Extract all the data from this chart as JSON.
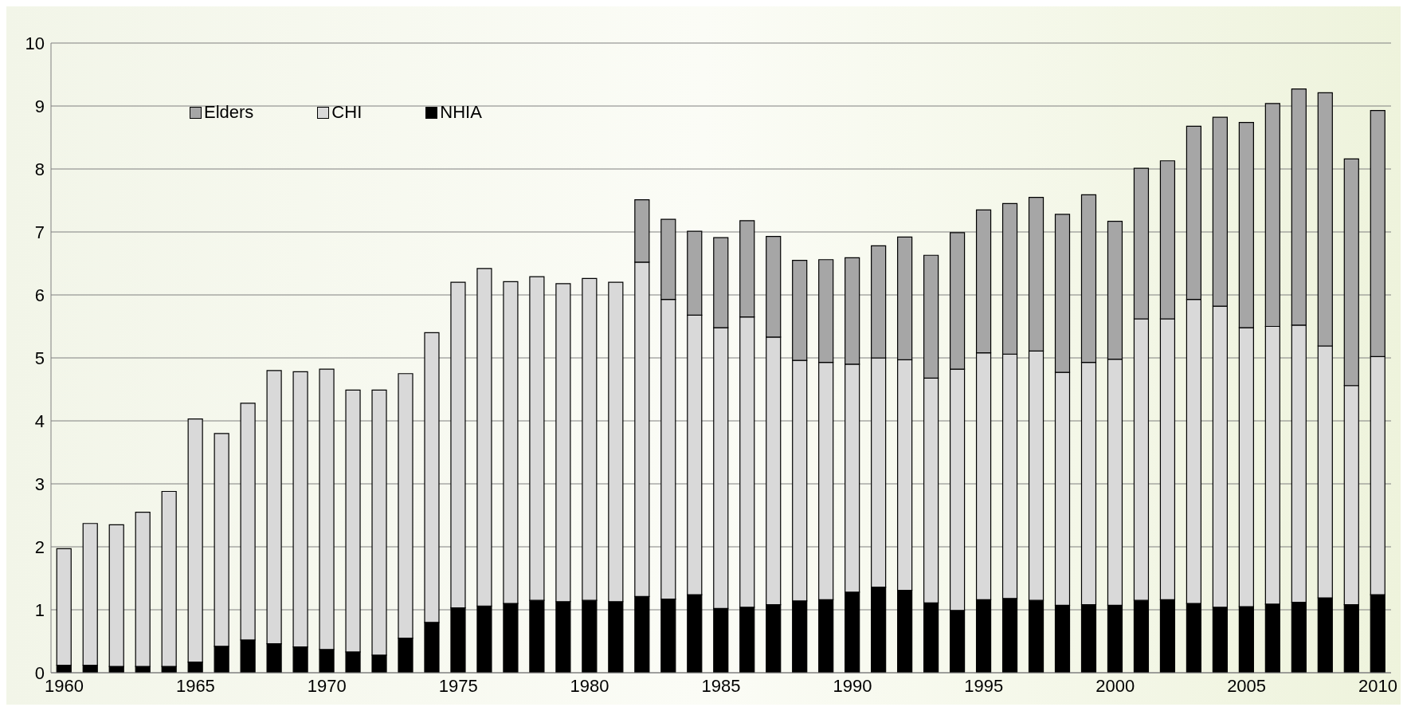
{
  "chart_data": {
    "type": "bar",
    "stacked": true,
    "categories": [
      "1960",
      null,
      null,
      null,
      null,
      "1965",
      null,
      null,
      null,
      null,
      "1970",
      null,
      null,
      null,
      null,
      "1975",
      null,
      null,
      null,
      null,
      "1980",
      null,
      null,
      null,
      null,
      "1985",
      null,
      null,
      null,
      null,
      "1990",
      null,
      null,
      null,
      null,
      "1995",
      null,
      null,
      null,
      null,
      "2000",
      null,
      null,
      null,
      null,
      "2005",
      null,
      null,
      null,
      null,
      "2010"
    ],
    "series": [
      {
        "name": "NHIA",
        "color": "#000000",
        "values": [
          0.12,
          0.12,
          0.1,
          0.1,
          0.1,
          0.17,
          0.42,
          0.52,
          0.46,
          0.41,
          0.37,
          0.33,
          0.28,
          0.55,
          0.8,
          1.03,
          1.06,
          1.1,
          1.15,
          1.13,
          1.15,
          1.13,
          1.21,
          1.17,
          1.24,
          1.02,
          1.04,
          1.08,
          1.14,
          1.16,
          1.28,
          1.36,
          1.31,
          1.11,
          0.99,
          1.16,
          1.18,
          1.15,
          1.07,
          1.08,
          1.07,
          1.15,
          1.16,
          1.1,
          1.04,
          1.05,
          1.09,
          1.12,
          1.19,
          1.08,
          1.24
        ]
      },
      {
        "name": "CHI",
        "color": "#d9d9d9",
        "values": [
          1.85,
          2.25,
          2.25,
          2.45,
          2.78,
          3.86,
          3.38,
          3.76,
          4.34,
          4.37,
          4.45,
          4.16,
          4.21,
          4.2,
          4.6,
          5.17,
          5.36,
          5.11,
          5.14,
          5.05,
          5.11,
          5.07,
          5.31,
          4.76,
          4.44,
          4.46,
          4.61,
          4.25,
          3.82,
          3.77,
          3.62,
          3.64,
          3.66,
          3.57,
          3.83,
          3.92,
          3.88,
          3.96,
          3.7,
          3.85,
          3.91,
          4.47,
          4.46,
          4.83,
          4.78,
          4.43,
          4.41,
          4.4,
          4.0,
          3.48,
          3.78
        ]
      },
      {
        "name": "Elders",
        "color": "#a6a6a6",
        "values": [
          null,
          null,
          null,
          null,
          null,
          null,
          null,
          null,
          null,
          null,
          null,
          null,
          null,
          null,
          null,
          null,
          null,
          null,
          null,
          null,
          null,
          null,
          0.99,
          1.27,
          1.33,
          1.43,
          1.53,
          1.6,
          1.59,
          1.63,
          1.69,
          1.78,
          1.95,
          1.95,
          2.17,
          2.27,
          2.39,
          2.44,
          2.51,
          2.66,
          2.19,
          2.39,
          2.51,
          2.75,
          3.0,
          3.26,
          3.54,
          3.75,
          4.02,
          3.6,
          3.91
        ]
      }
    ],
    "ylim": [
      0,
      10
    ],
    "yticks": [
      0,
      1,
      2,
      3,
      4,
      5,
      6,
      7,
      8,
      9,
      10
    ],
    "grid": "y",
    "legend": "top left"
  }
}
